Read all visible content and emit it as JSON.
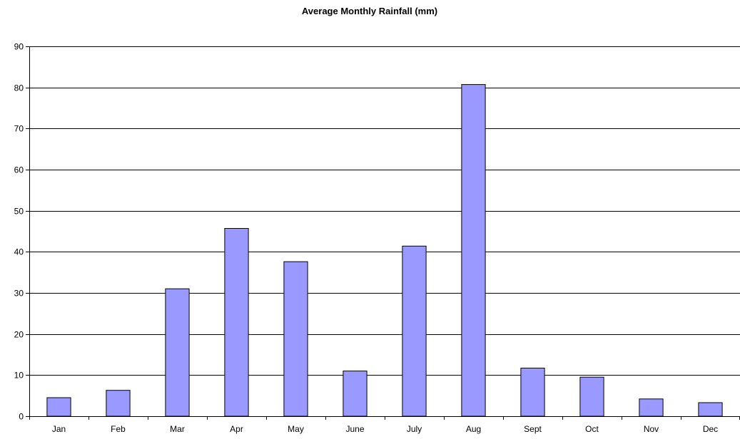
{
  "chart_data": {
    "type": "bar",
    "title": "Average Monthly Rainfall (mm)",
    "xlabel": "",
    "ylabel": "",
    "categories": [
      "Jan",
      "Feb",
      "Mar",
      "Apr",
      "May",
      "June",
      "July",
      "Aug",
      "Sept",
      "Oct",
      "Nov",
      "Dec"
    ],
    "values": [
      4.5,
      6.3,
      31.0,
      45.7,
      37.6,
      11.0,
      41.4,
      80.7,
      11.7,
      9.5,
      4.2,
      3.3
    ],
    "ylim": [
      0,
      90
    ],
    "yticks": [
      0,
      10,
      20,
      30,
      40,
      50,
      60,
      70,
      80,
      90
    ],
    "grid": true,
    "legend": "none",
    "bar_color": "#9999ff",
    "bar_border_color": "#000000"
  }
}
